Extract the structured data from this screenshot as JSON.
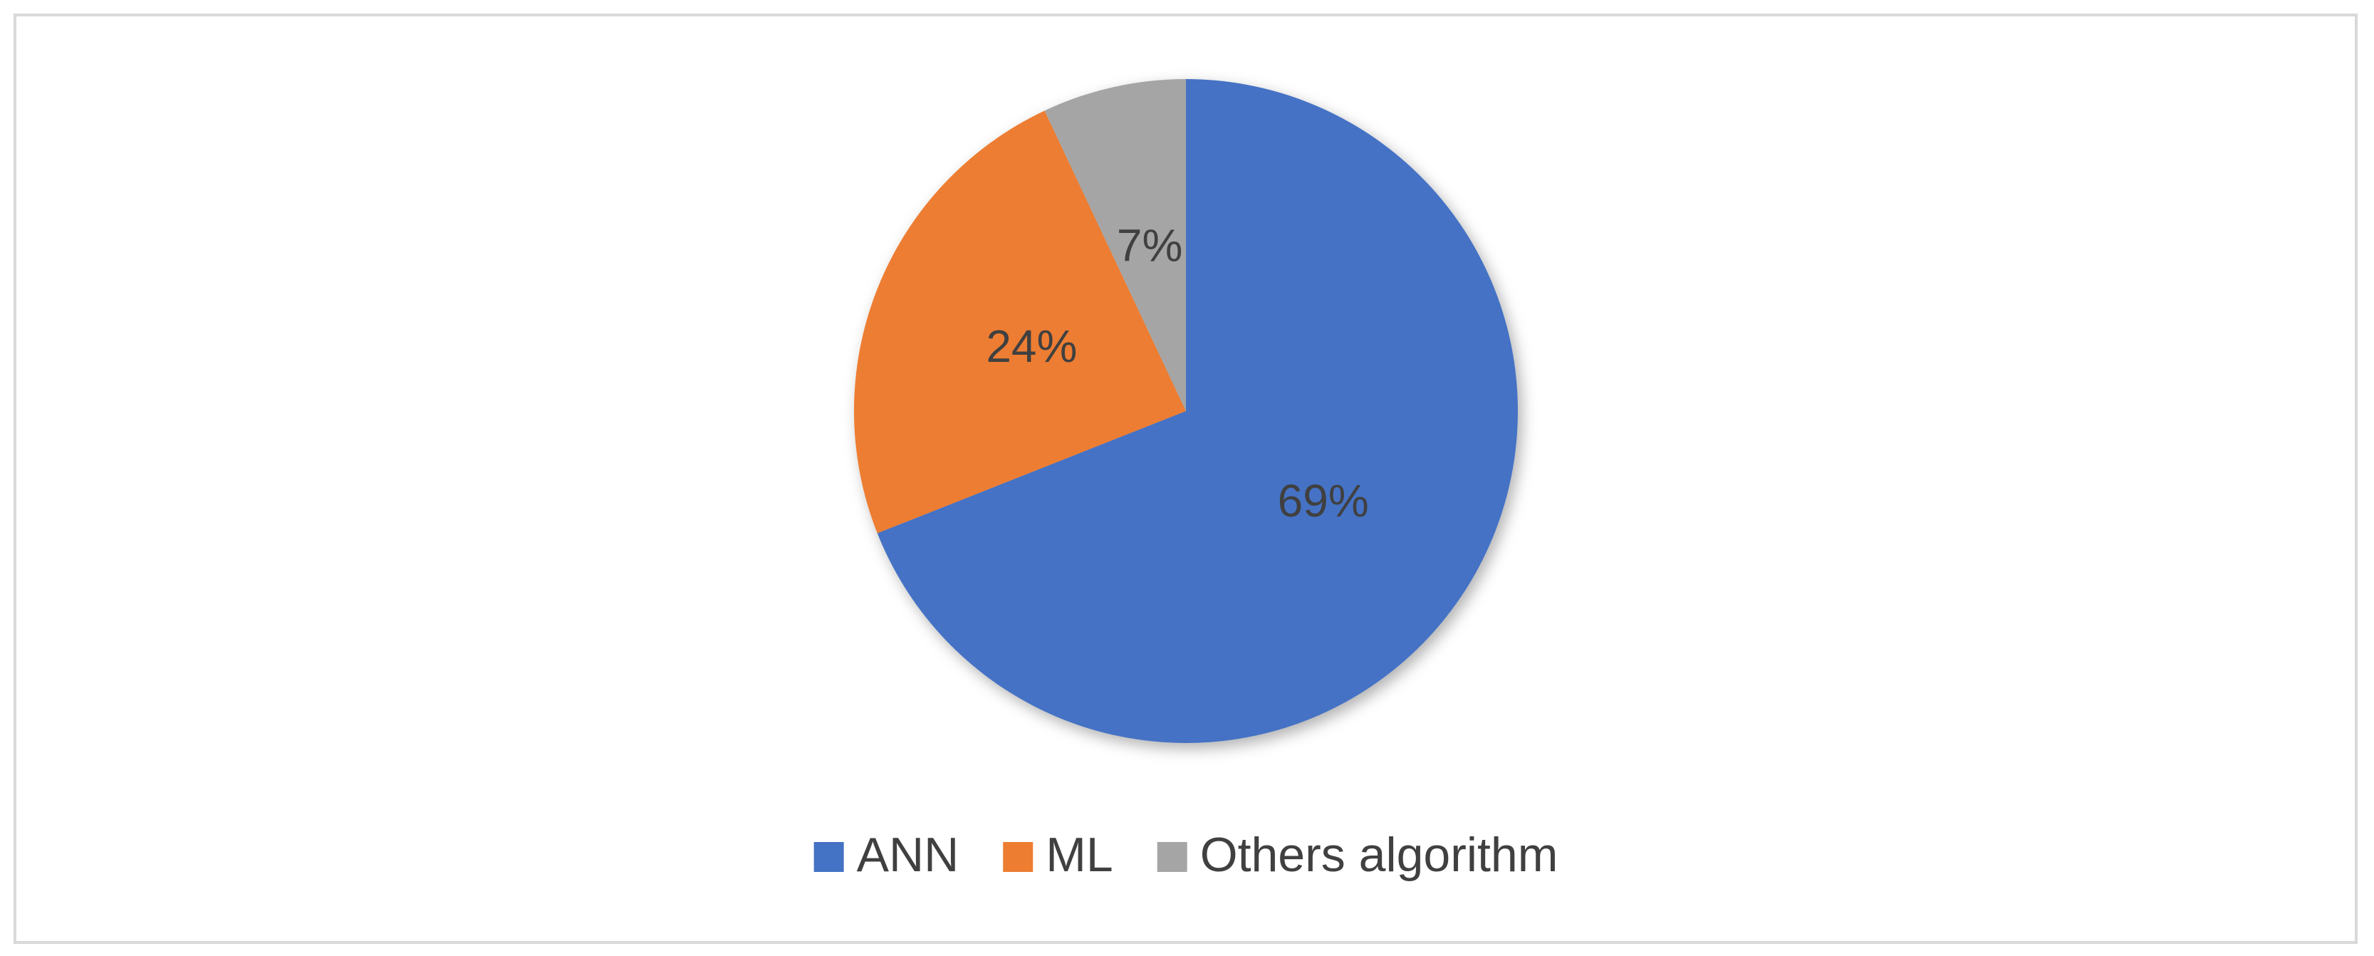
{
  "chart_data": {
    "type": "pie",
    "categories": [
      "ANN",
      "ML",
      "Others algorithm"
    ],
    "values": [
      69,
      24,
      7
    ],
    "value_labels": [
      "69%",
      "24%",
      "7%"
    ],
    "colors": [
      "#4472c4",
      "#ed7d31",
      "#a5a5a5"
    ],
    "legend": "bottom"
  }
}
